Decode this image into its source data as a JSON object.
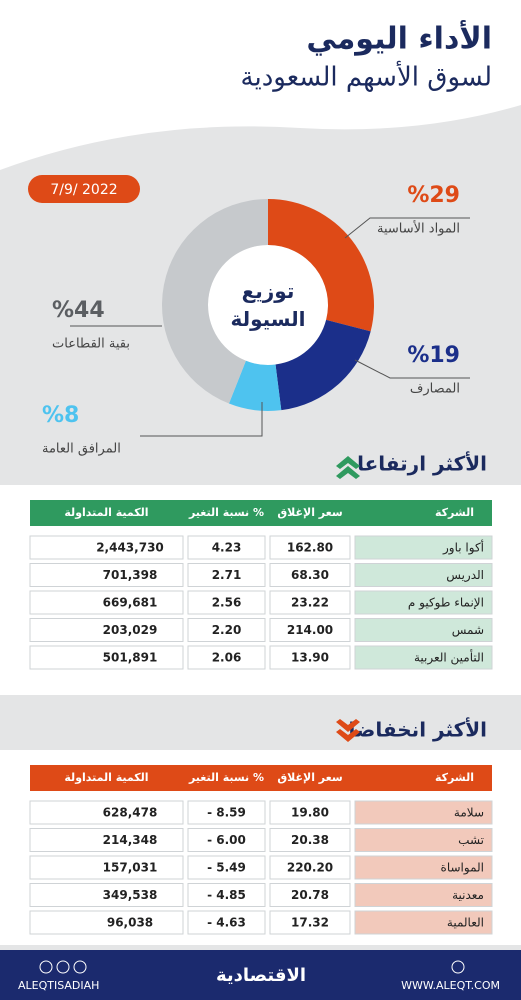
{
  "header": {
    "title": "الأداء اليومي",
    "subtitle": "لسوق الأسهم السعودية"
  },
  "date": "7/9/ 2022",
  "chart_data": {
    "type": "pie",
    "title": "توزيع السيولة",
    "categories": [
      "المواد الأساسية",
      "المصارف",
      "المرافق العامة",
      "بقية القطاعات"
    ],
    "values": [
      29,
      19,
      8,
      44
    ],
    "value_labels": [
      "%29",
      "%19",
      "%8",
      "%44"
    ],
    "colors": [
      "#de4a17",
      "#1b2f8a",
      "#4ec3ef",
      "#c6c9cc"
    ]
  },
  "gainers": {
    "title": "الأكثر ارتفاعا",
    "headers": [
      "الشركة",
      "سعر الإغلاق",
      "نسبة التغير %",
      "الكمية المتداولة"
    ],
    "rows": [
      [
        "أكوا باور",
        "162.80",
        "4.23",
        "2,443,730"
      ],
      [
        "الدريس",
        "68.30",
        "2.71",
        "701,398"
      ],
      [
        "الإنماء طوكيو م",
        "23.22",
        "2.56",
        "669,681"
      ],
      [
        "شمس",
        "214.00",
        "2.20",
        "203,029"
      ],
      [
        "التأمين العربية",
        "13.90",
        "2.06",
        "501,891"
      ]
    ]
  },
  "losers": {
    "title": "الأكثر انخفاضا",
    "headers": [
      "الشركة",
      "سعر الإغلاق",
      "نسبة التغير %",
      "الكمية المتداولة"
    ],
    "rows": [
      [
        "سلامة",
        "19.80",
        "- 8.59",
        "628,478"
      ],
      [
        "تشب",
        "20.38",
        "- 6.00",
        "214,348"
      ],
      [
        "المواساة",
        "220.20",
        "- 5.49",
        "157,031"
      ],
      [
        "معدنية",
        "20.78",
        "- 4.85",
        "349,538"
      ],
      [
        "العالمية",
        "17.32",
        "- 4.63",
        "96,038"
      ]
    ]
  },
  "footer": {
    "handle": "ALEQTISADIAH",
    "brand": "الاقتصادية",
    "website": "WWW.ALEQT.COM"
  }
}
